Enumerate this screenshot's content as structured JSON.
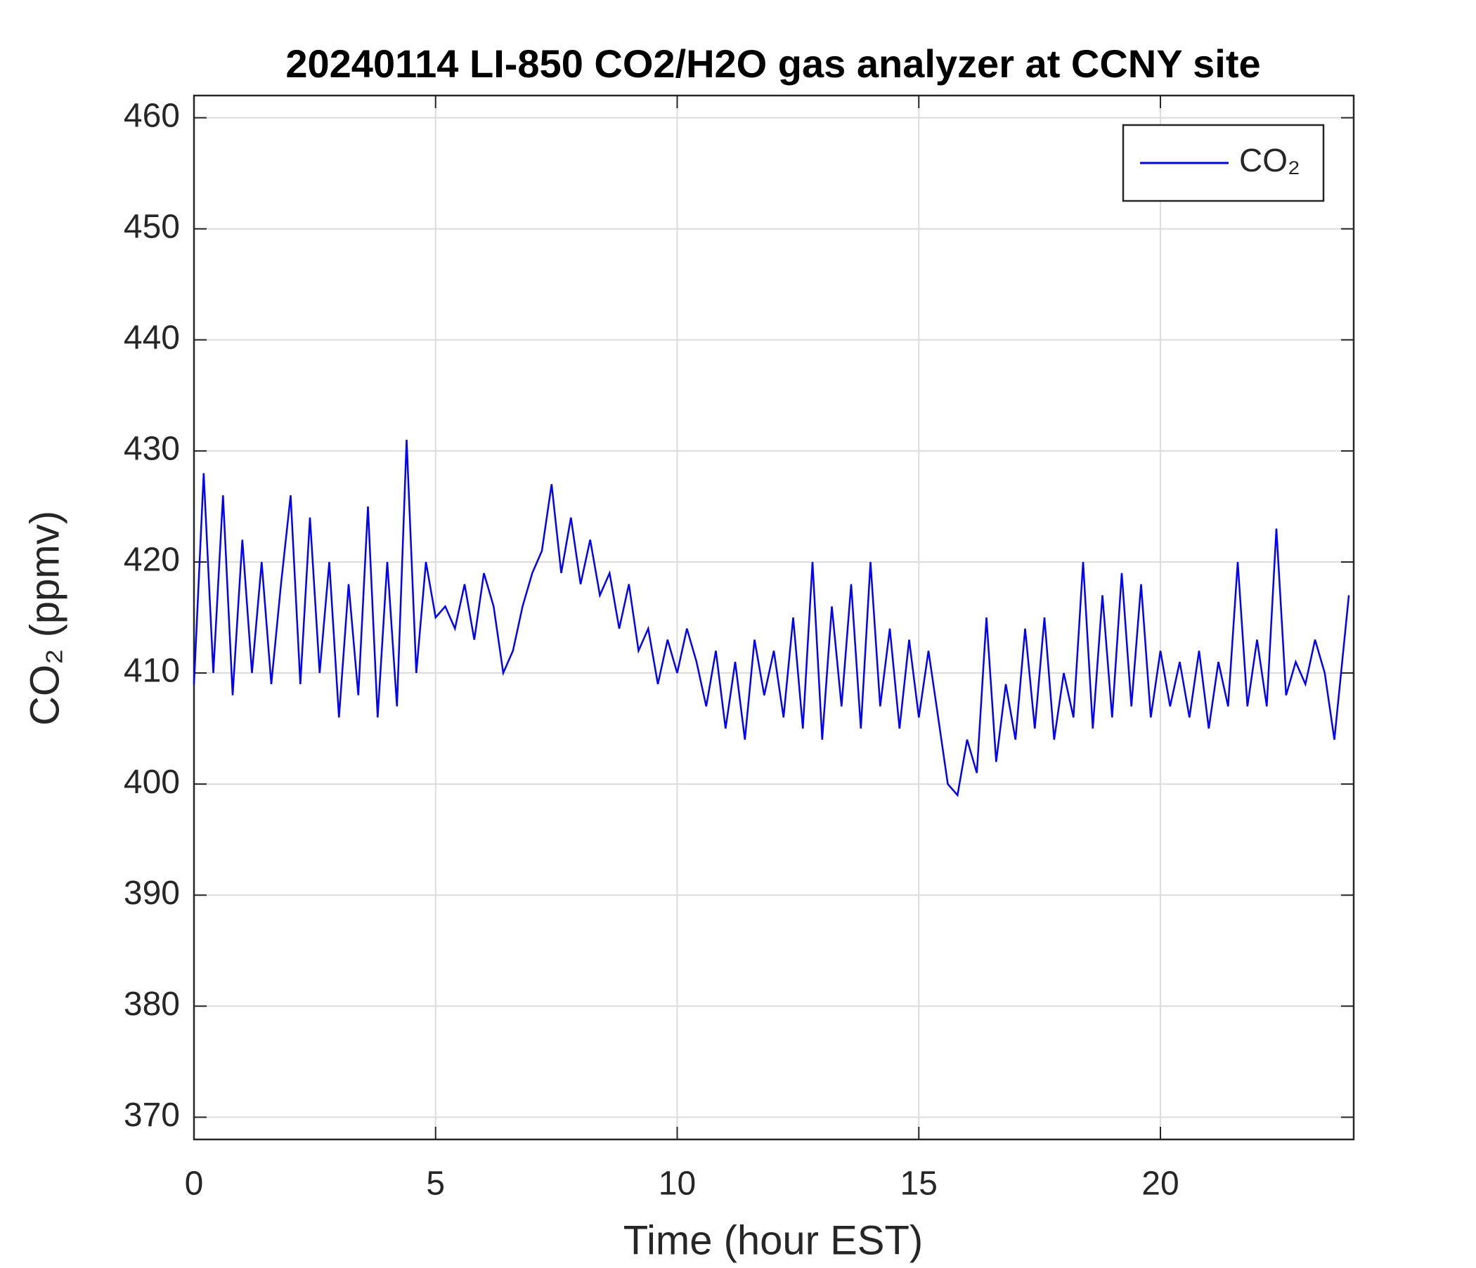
{
  "chart_data": {
    "type": "line",
    "title": "20240114 LI-850 CO2/H2O gas analyzer at CCNY site",
    "xlabel": "Time (hour EST)",
    "ylabel": "CO₂ (ppmv)",
    "x": [
      0,
      0.2,
      0.4,
      0.6,
      0.8,
      1,
      1.2,
      1.4,
      1.6,
      1.8,
      2,
      2.2,
      2.4,
      2.6,
      2.8,
      3,
      3.2,
      3.4,
      3.6,
      3.8,
      4,
      4.2,
      4.4,
      4.6,
      4.8,
      5,
      5.2,
      5.4,
      5.6,
      5.8,
      6,
      6.2,
      6.4,
      6.6,
      6.8,
      7,
      7.2,
      7.4,
      7.6,
      7.8,
      8,
      8.2,
      8.4,
      8.6,
      8.8,
      9,
      9.2,
      9.4,
      9.6,
      9.8,
      10,
      10.2,
      10.4,
      10.6,
      10.8,
      11,
      11.2,
      11.4,
      11.6,
      11.8,
      12,
      12.2,
      12.4,
      12.6,
      12.8,
      13,
      13.2,
      13.4,
      13.6,
      13.8,
      14,
      14.2,
      14.4,
      14.6,
      14.8,
      15,
      15.2,
      15.4,
      15.6,
      15.8,
      16,
      16.2,
      16.4,
      16.6,
      16.8,
      17,
      17.2,
      17.4,
      17.6,
      17.8,
      18,
      18.2,
      18.4,
      18.6,
      18.8,
      19,
      19.2,
      19.4,
      19.6,
      19.8,
      20,
      20.2,
      20.4,
      20.6,
      20.8,
      21,
      21.2,
      21.4,
      21.6,
      21.8,
      22,
      22.2,
      22.4,
      22.6,
      22.8,
      23,
      23.2,
      23.4,
      23.6,
      23.9
    ],
    "series": [
      {
        "name": "CO₂",
        "color": "#0000ff",
        "values": [
          409,
          428,
          410,
          426,
          408,
          422,
          410,
          420,
          409,
          418,
          426,
          409,
          424,
          410,
          420,
          406,
          418,
          408,
          425,
          406,
          420,
          407,
          431,
          410,
          420,
          415,
          416,
          414,
          418,
          413,
          419,
          416,
          410,
          412,
          416,
          419,
          421,
          427,
          419,
          424,
          418,
          422,
          417,
          419,
          414,
          418,
          412,
          414,
          409,
          413,
          410,
          414,
          411,
          407,
          412,
          405,
          411,
          404,
          413,
          408,
          412,
          406,
          415,
          405,
          420,
          404,
          416,
          407,
          418,
          405,
          420,
          407,
          414,
          405,
          413,
          406,
          412,
          406,
          400,
          399,
          404,
          401,
          415,
          402,
          409,
          404,
          414,
          405,
          415,
          404,
          410,
          406,
          420,
          405,
          417,
          406,
          419,
          407,
          418,
          406,
          412,
          407,
          411,
          406,
          412,
          405,
          411,
          407,
          420,
          407,
          413,
          407,
          423,
          408,
          411,
          409,
          413,
          410,
          404,
          417
        ]
      }
    ],
    "xlim": [
      0,
      24
    ],
    "ylim": [
      368,
      462
    ],
    "xticks": [
      0,
      5,
      10,
      15,
      20
    ],
    "yticks": [
      370,
      380,
      390,
      400,
      410,
      420,
      430,
      440,
      450,
      460
    ],
    "grid": true,
    "legend": "top-right"
  }
}
